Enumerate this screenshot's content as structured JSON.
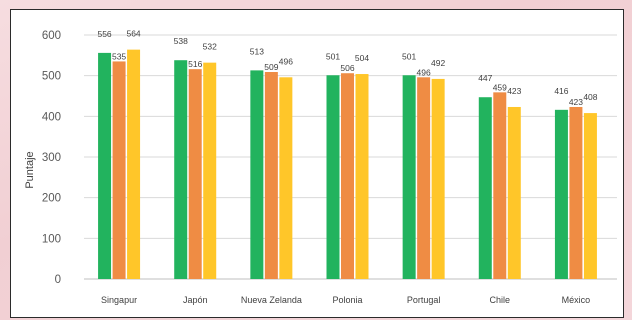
{
  "chart_data": {
    "type": "bar",
    "title": "",
    "xlabel": "",
    "ylabel": "Puntaje",
    "ylim": [
      0,
      600
    ],
    "yticks": [
      0,
      100,
      200,
      300,
      400,
      500,
      600
    ],
    "grid": true,
    "legend": "none",
    "categories": [
      "Singapur",
      "Japón",
      "Nueva Zelanda",
      "Polonia",
      "Portugal",
      "Chile",
      "México"
    ],
    "series": [
      {
        "color": "#22b35e",
        "values": [
          556,
          538,
          513,
          501,
          501,
          447,
          416
        ]
      },
      {
        "color": "#ef8c44",
        "values": [
          535,
          516,
          509,
          506,
          496,
          459,
          423
        ]
      },
      {
        "color": "#ffc629",
        "values": [
          564,
          532,
          496,
          504,
          492,
          423,
          408
        ]
      }
    ]
  }
}
